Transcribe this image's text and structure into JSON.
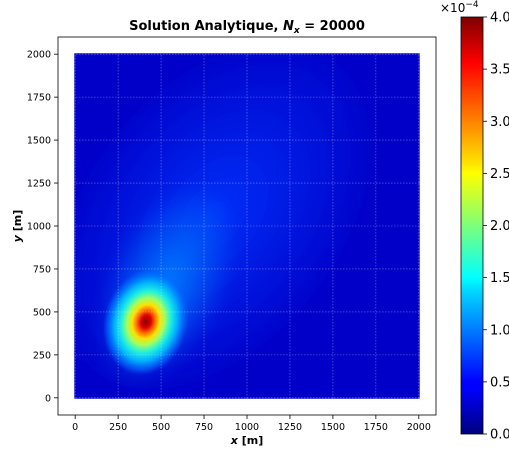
{
  "chart_data": {
    "type": "heatmap",
    "title_main": "Solution Analytique, ",
    "title_var": "N",
    "title_sub": "x",
    "title_rest": " = 20000",
    "xlabel_var": "x",
    "xlabel_unit": " [m]",
    "ylabel_var": "y",
    "ylabel_unit": " [m]",
    "xlim": [
      -100,
      2100
    ],
    "ylim": [
      -100,
      2100
    ],
    "data_extent": {
      "x": [
        0,
        2000
      ],
      "y": [
        0,
        2000
      ]
    },
    "xticks": [
      0,
      250,
      500,
      750,
      1000,
      1250,
      1500,
      1750,
      2000
    ],
    "yticks": [
      0,
      250,
      500,
      750,
      1000,
      1250,
      1500,
      1750,
      2000
    ],
    "grid": true,
    "colormap": "jet",
    "peak": {
      "x": 400,
      "y": 420,
      "value": 0.0004
    },
    "plume_direction": "toward top-right",
    "colorbar": {
      "range": [
        0,
        4.0
      ],
      "ticks": [
        "0.0",
        "0.5",
        "1.0",
        "1.5",
        "2.0",
        "2.5",
        "3.0",
        "3.5",
        "4.0"
      ],
      "exponent_base": "×10",
      "exponent_power": "−4"
    }
  }
}
